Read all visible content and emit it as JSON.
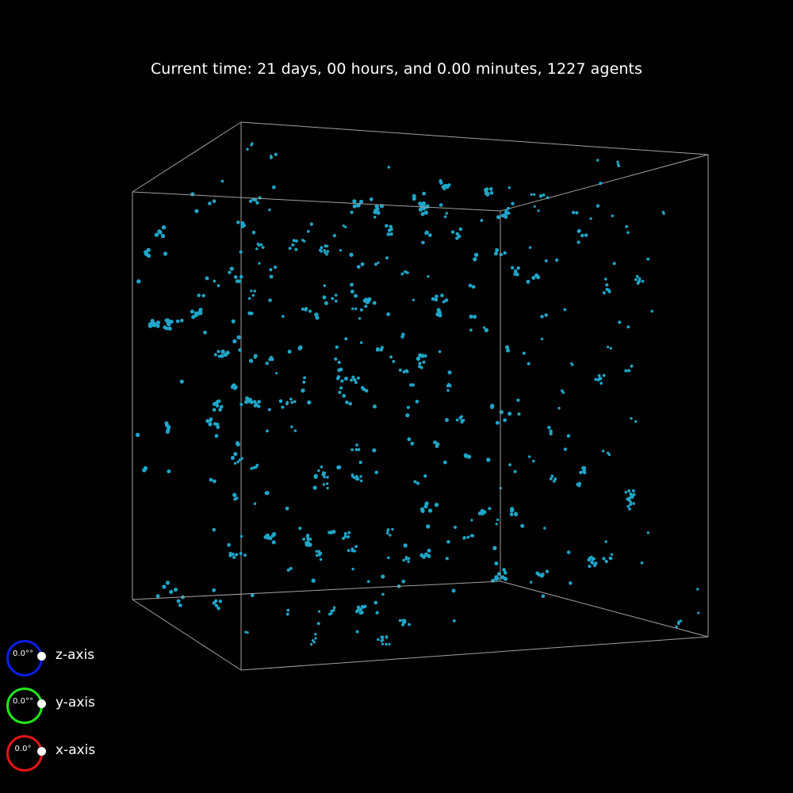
{
  "status": {
    "text": "Current time: 21 days, 00 hours, and 0.00 minutes, 1227 agents"
  },
  "scene": {
    "box_edge_color": "#a0a0a0",
    "agent_color": "#1fa6c8",
    "agent_count_rendered_seed": 20240521
  },
  "rotation_controls": [
    {
      "axis_label": "z-axis",
      "value": "0.0°°",
      "ring_color": "#0a1fe6"
    },
    {
      "axis_label": "y-axis",
      "value": "0.0°°",
      "ring_color": "#22e61a"
    },
    {
      "axis_label": "x-axis",
      "value": "0.0°",
      "ring_color": "#e61414"
    }
  ],
  "background_color": "#000000"
}
